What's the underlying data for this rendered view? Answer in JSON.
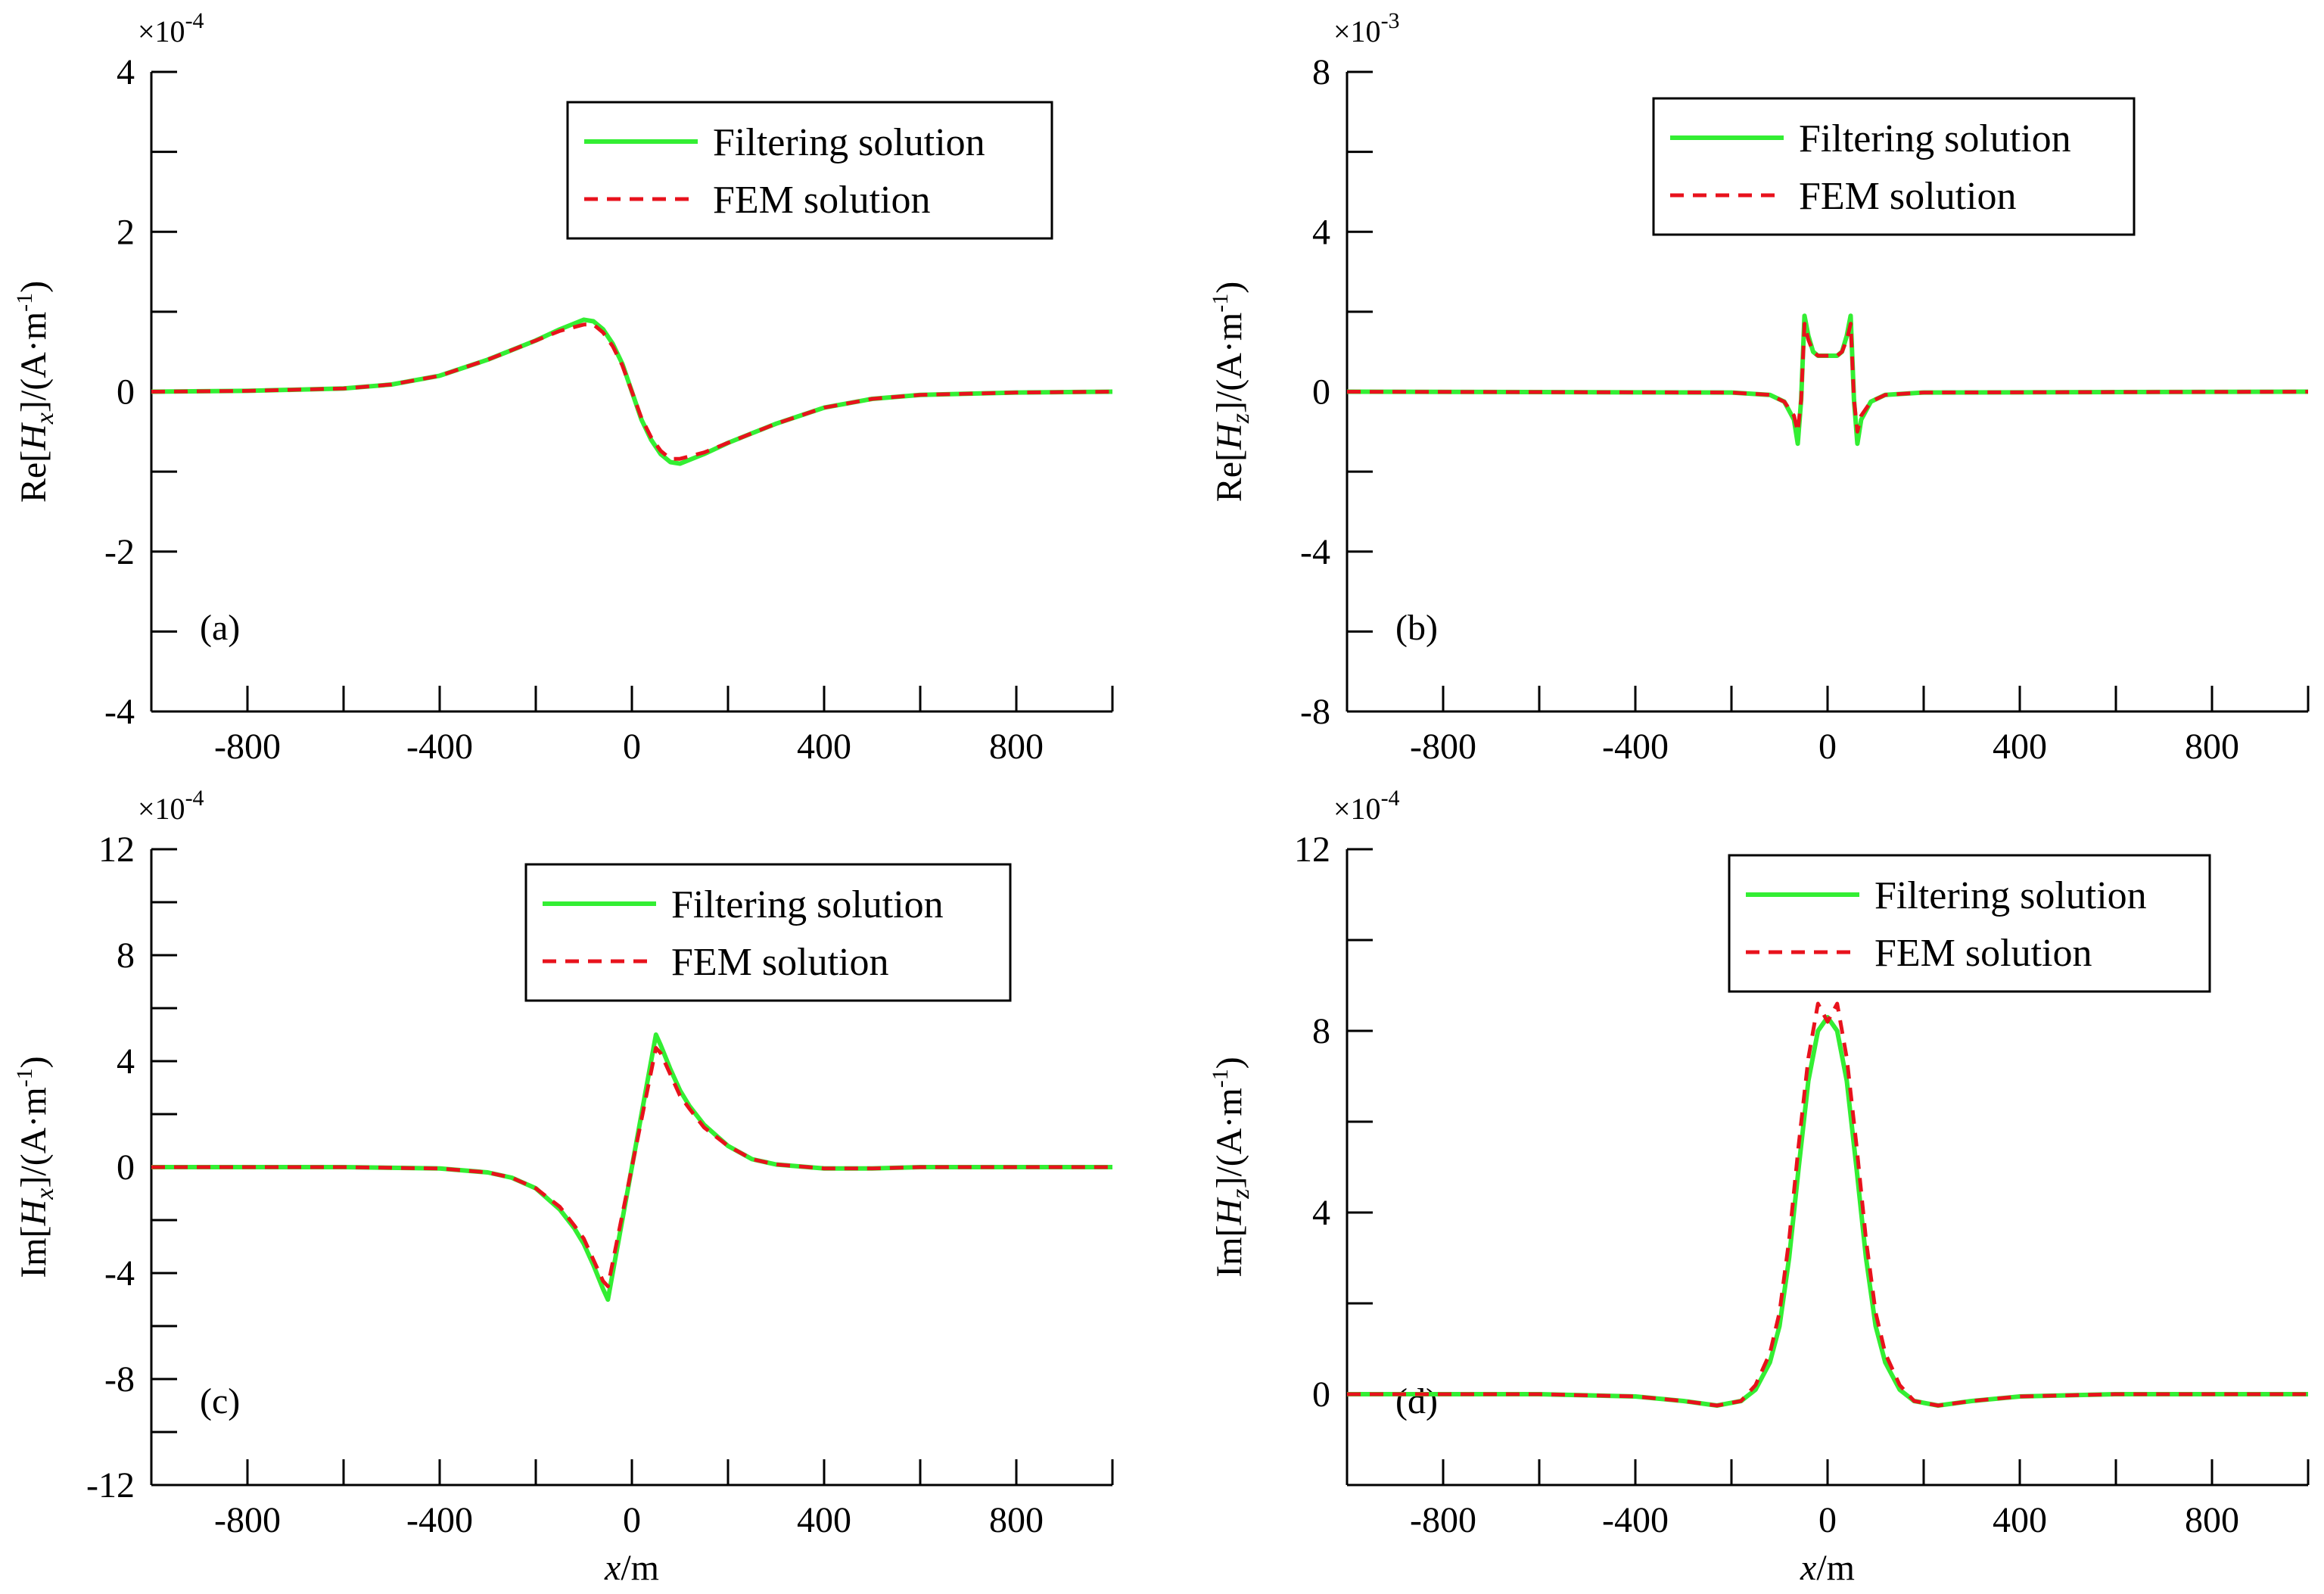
{
  "figure": {
    "colors": {
      "filtering": "#33ee33",
      "fem": "#e8121c",
      "axis": "#000000"
    }
  },
  "chart_data": [
    {
      "id": "a",
      "type": "line",
      "panel_label": "(a)",
      "title": "",
      "ylabel": "Re[Hx]/(A·m-1)",
      "ylabel_parts": {
        "prefix": "Re[",
        "var": "H",
        "sub": "x",
        "mid": "]/(A·m",
        "sup": "-1",
        "suffix": ")"
      },
      "xlabel": "",
      "xlabel_parts": null,
      "multiplier": {
        "base": "×10",
        "exp": "-4"
      },
      "xlim": [
        -1000,
        1000
      ],
      "ylim": [
        -4,
        4
      ],
      "xticks": [
        -800,
        -400,
        0,
        400,
        800
      ],
      "xtick_labels": [
        "-800",
        "-400",
        "0",
        "400",
        "800"
      ],
      "yticks": [
        -4,
        -2,
        0,
        2,
        4
      ],
      "ytick_labels": [
        "-4",
        "-2",
        "0",
        "2",
        "4"
      ],
      "legend": {
        "position": "top-right",
        "entries": [
          "Filtering solution",
          "FEM solution"
        ]
      },
      "series": [
        {
          "name": "Filtering solution",
          "style": "solid",
          "x": [
            -1000,
            -800,
            -600,
            -500,
            -400,
            -300,
            -250,
            -200,
            -150,
            -100,
            -80,
            -60,
            -40,
            -20,
            0,
            20,
            40,
            60,
            80,
            100,
            150,
            200,
            250,
            300,
            400,
            500,
            600,
            800,
            1000
          ],
          "y": [
            0,
            0.01,
            0.04,
            0.09,
            0.2,
            0.4,
            0.52,
            0.64,
            0.78,
            0.9,
            0.88,
            0.78,
            0.6,
            0.35,
            0,
            -0.35,
            -0.6,
            -0.78,
            -0.88,
            -0.9,
            -0.78,
            -0.64,
            -0.52,
            -0.4,
            -0.2,
            -0.09,
            -0.04,
            -0.01,
            0
          ]
        },
        {
          "name": "FEM solution",
          "style": "dashed",
          "x": [
            -1000,
            -800,
            -600,
            -500,
            -400,
            -300,
            -250,
            -200,
            -150,
            -100,
            -80,
            -60,
            -40,
            -20,
            0,
            20,
            40,
            60,
            80,
            100,
            150,
            200,
            250,
            300,
            400,
            500,
            600,
            800,
            1000
          ],
          "y": [
            0,
            0.01,
            0.04,
            0.09,
            0.2,
            0.4,
            0.52,
            0.64,
            0.76,
            0.84,
            0.84,
            0.74,
            0.57,
            0.33,
            0,
            -0.33,
            -0.57,
            -0.74,
            -0.84,
            -0.84,
            -0.76,
            -0.64,
            -0.52,
            -0.4,
            -0.2,
            -0.09,
            -0.04,
            -0.01,
            0
          ]
        }
      ]
    },
    {
      "id": "b",
      "type": "line",
      "panel_label": "(b)",
      "title": "",
      "ylabel": "Re[Hz]/(A·m-1)",
      "ylabel_parts": {
        "prefix": "Re[",
        "var": "H",
        "sub": "z",
        "mid": "]/(A·m",
        "sup": "-1",
        "suffix": ")"
      },
      "xlabel": "",
      "xlabel_parts": null,
      "multiplier": {
        "base": "×10",
        "exp": "-3"
      },
      "xlim": [
        -1000,
        1000
      ],
      "ylim": [
        -8,
        8
      ],
      "xticks": [
        -800,
        -400,
        0,
        400,
        800
      ],
      "xtick_labels": [
        "-800",
        "-400",
        "0",
        "400",
        "800"
      ],
      "yticks": [
        -8,
        -4,
        0,
        4,
        8
      ],
      "ytick_labels": [
        "-8",
        "-4",
        "0",
        "4",
        "8"
      ],
      "legend": {
        "position": "top-right",
        "entries": [
          "Filtering solution",
          "FEM solution"
        ]
      },
      "series": [
        {
          "name": "Filtering solution",
          "style": "solid",
          "x": [
            -1000,
            -200,
            -120,
            -90,
            -70,
            -62,
            -55,
            -48,
            -40,
            -30,
            -20,
            0,
            20,
            30,
            40,
            48,
            55,
            62,
            70,
            90,
            120,
            200,
            1000
          ],
          "y": [
            0,
            -0.02,
            -0.08,
            -0.25,
            -0.7,
            -1.3,
            -0.2,
            1.9,
            1.4,
            1.0,
            0.9,
            0.9,
            0.9,
            1.0,
            1.4,
            1.9,
            -0.2,
            -1.3,
            -0.7,
            -0.25,
            -0.08,
            -0.02,
            0
          ]
        },
        {
          "name": "FEM solution",
          "style": "dashed",
          "x": [
            -1000,
            -200,
            -120,
            -90,
            -70,
            -62,
            -55,
            -48,
            -40,
            -30,
            -20,
            0,
            20,
            30,
            40,
            48,
            55,
            62,
            70,
            90,
            120,
            200,
            1000
          ],
          "y": [
            0,
            -0.02,
            -0.08,
            -0.25,
            -0.6,
            -1.0,
            -0.2,
            1.7,
            1.3,
            1.0,
            0.9,
            0.9,
            0.9,
            1.0,
            1.3,
            1.7,
            -0.2,
            -1.0,
            -0.6,
            -0.25,
            -0.08,
            -0.02,
            0
          ]
        }
      ]
    },
    {
      "id": "c",
      "type": "line",
      "panel_label": "(c)",
      "title": "",
      "ylabel": "Im[Hx]/(A·m-1)",
      "ylabel_parts": {
        "prefix": "Im[",
        "var": "H",
        "sub": "x",
        "mid": "]/(A·m",
        "sup": "-1",
        "suffix": ")"
      },
      "xlabel": "x/m",
      "xlabel_parts": {
        "var": "x",
        "rest": "/m"
      },
      "multiplier": {
        "base": "×10",
        "exp": "-4"
      },
      "xlim": [
        -1000,
        1000
      ],
      "ylim": [
        -12,
        12
      ],
      "xticks": [
        -800,
        -400,
        0,
        400,
        800
      ],
      "xtick_labels": [
        "-800",
        "-400",
        "0",
        "400",
        "800"
      ],
      "yticks": [
        -12,
        -8,
        -4,
        0,
        4,
        8,
        12
      ],
      "ytick_labels": [
        "-12",
        "-8",
        "-4",
        "0",
        "4",
        "8",
        "12"
      ],
      "legend": {
        "position": "top-right",
        "entries": [
          "Filtering solution",
          "FEM solution"
        ]
      },
      "series": [
        {
          "name": "Filtering solution",
          "style": "solid",
          "x": [
            -1000,
            -600,
            -400,
            -300,
            -250,
            -200,
            -150,
            -120,
            -100,
            -80,
            -60,
            -50,
            -40,
            0,
            40,
            50,
            60,
            80,
            100,
            120,
            150,
            200,
            250,
            300,
            400,
            500,
            600,
            1000
          ],
          "y": [
            0,
            0,
            -0.05,
            -0.2,
            -0.4,
            -0.8,
            -1.6,
            -2.3,
            -2.9,
            -3.7,
            -4.6,
            -5.0,
            -4.0,
            0,
            4.0,
            5.0,
            4.6,
            3.7,
            2.9,
            2.3,
            1.6,
            0.8,
            0.3,
            0.1,
            -0.05,
            -0.05,
            0,
            0
          ]
        },
        {
          "name": "FEM solution",
          "style": "dashed",
          "x": [
            -1000,
            -600,
            -400,
            -300,
            -250,
            -200,
            -150,
            -120,
            -100,
            -80,
            -60,
            -50,
            -40,
            0,
            40,
            50,
            60,
            80,
            100,
            120,
            150,
            200,
            250,
            300,
            400,
            500,
            600,
            1000
          ],
          "y": [
            0,
            0,
            -0.05,
            -0.2,
            -0.4,
            -0.8,
            -1.5,
            -2.2,
            -2.7,
            -3.5,
            -4.3,
            -4.5,
            -3.6,
            0,
            3.6,
            4.5,
            4.3,
            3.5,
            2.7,
            2.2,
            1.5,
            0.8,
            0.3,
            0.1,
            -0.05,
            -0.05,
            0,
            0
          ]
        }
      ]
    },
    {
      "id": "d",
      "type": "line",
      "panel_label": "(d)",
      "title": "",
      "ylabel": "Im[Hz]/(A·m-1)",
      "ylabel_parts": {
        "prefix": "Im[",
        "var": "H",
        "sub": "z",
        "mid": "]/(A·m",
        "sup": "-1",
        "suffix": ")"
      },
      "xlabel": "x/m",
      "xlabel_parts": {
        "var": "x",
        "rest": "/m"
      },
      "multiplier": {
        "base": "×10",
        "exp": "-4"
      },
      "xlim": [
        -1000,
        1000
      ],
      "ylim": [
        -2,
        12
      ],
      "xticks": [
        -800,
        -400,
        0,
        400,
        800
      ],
      "xtick_labels": [
        "-800",
        "-400",
        "0",
        "400",
        "800"
      ],
      "yticks": [
        0,
        4,
        8,
        12
      ],
      "ytick_labels": [
        "0",
        "4",
        "8",
        "12"
      ],
      "legend": {
        "position": "top-right",
        "entries": [
          "Filtering solution",
          "FEM solution"
        ]
      },
      "series": [
        {
          "name": "Filtering solution",
          "style": "solid",
          "x": [
            -1000,
            -600,
            -400,
            -300,
            -230,
            -180,
            -150,
            -120,
            -100,
            -80,
            -60,
            -40,
            -20,
            0,
            20,
            40,
            60,
            80,
            100,
            120,
            150,
            180,
            230,
            300,
            400,
            600,
            1000
          ],
          "y": [
            0,
            0,
            -0.05,
            -0.15,
            -0.25,
            -0.15,
            0.1,
            0.7,
            1.5,
            3.0,
            5.0,
            6.9,
            8.0,
            8.3,
            8.0,
            6.9,
            5.0,
            3.0,
            1.5,
            0.7,
            0.1,
            -0.15,
            -0.25,
            -0.15,
            -0.05,
            0,
            0
          ]
        },
        {
          "name": "FEM solution",
          "style": "dashed",
          "x": [
            -1000,
            -600,
            -400,
            -300,
            -230,
            -180,
            -150,
            -120,
            -100,
            -80,
            -60,
            -40,
            -20,
            -10,
            0,
            10,
            20,
            40,
            60,
            80,
            100,
            120,
            150,
            180,
            230,
            300,
            400,
            600,
            1000
          ],
          "y": [
            0,
            0,
            -0.05,
            -0.15,
            -0.25,
            -0.15,
            0.2,
            0.9,
            1.8,
            3.4,
            5.5,
            7.4,
            8.6,
            8.4,
            8.2,
            8.4,
            8.6,
            7.4,
            5.5,
            3.4,
            1.8,
            0.9,
            0.2,
            -0.15,
            -0.25,
            -0.15,
            -0.05,
            0,
            0
          ]
        }
      ]
    }
  ]
}
